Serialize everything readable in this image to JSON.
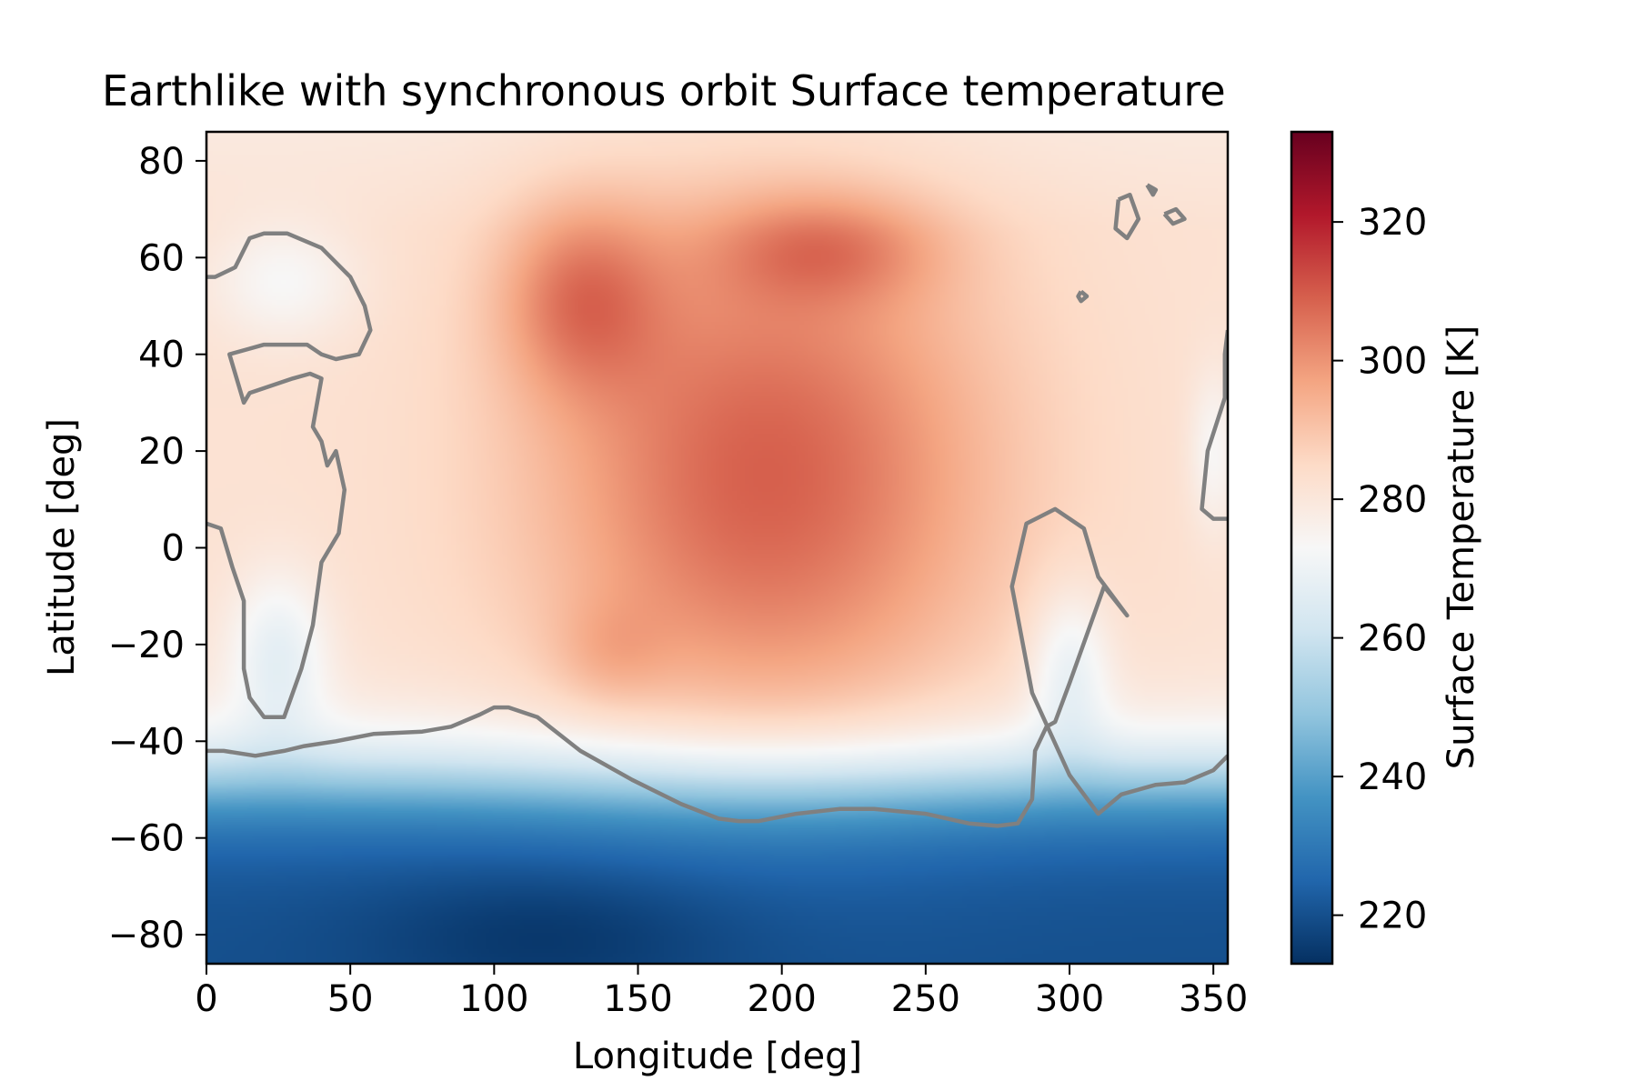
{
  "chart_data": {
    "type": "heatmap",
    "title": "Earthlike with synchronous orbit Surface temperature",
    "xlabel": "Longitude [deg]",
    "ylabel": "Latitude [deg]",
    "xlim": [
      0,
      355
    ],
    "ylim": [
      -86,
      86
    ],
    "xticks": [
      0,
      50,
      100,
      150,
      200,
      250,
      300,
      350
    ],
    "yticks": [
      80,
      60,
      40,
      20,
      0,
      -20,
      -40,
      -60,
      -80
    ],
    "colorbar": {
      "label": "Surface Temperature [K]",
      "range": [
        213,
        333
      ],
      "ticks": [
        320,
        300,
        280,
        260,
        240,
        220
      ],
      "colormap": "RdBu_r",
      "colormap_stops": [
        "#053061",
        "#2166ac",
        "#4393c3",
        "#92c5de",
        "#d1e5f0",
        "#f7f7f7",
        "#fddbc7",
        "#f4a582",
        "#d6604d",
        "#b2182b",
        "#67001f"
      ]
    },
    "grid": false,
    "temperature_features": [
      {
        "kind": "gaussian",
        "lon": 195,
        "lat": 15,
        "sigma_lon": 55,
        "sigma_lat": 38,
        "delta_K": 27
      },
      {
        "kind": "gaussian",
        "lon": 130,
        "lat": 52,
        "sigma_lon": 20,
        "sigma_lat": 14,
        "delta_K": 18
      },
      {
        "kind": "gaussian",
        "lon": 215,
        "lat": 62,
        "sigma_lon": 28,
        "sigma_lat": 8,
        "delta_K": 14
      },
      {
        "kind": "gaussian",
        "lon": 140,
        "lat": -22,
        "sigma_lon": 14,
        "sigma_lat": 8,
        "delta_K": 6
      },
      {
        "kind": "gaussian",
        "lon": 25,
        "lat": -22,
        "sigma_lon": 12,
        "sigma_lat": 12,
        "delta_K": -14
      },
      {
        "kind": "gaussian",
        "lon": 27,
        "lat": 55,
        "sigma_lon": 18,
        "sigma_lat": 9,
        "delta_K": -9
      },
      {
        "kind": "gaussian",
        "lon": 300,
        "lat": -25,
        "sigma_lon": 10,
        "sigma_lat": 12,
        "delta_K": -14
      },
      {
        "kind": "gaussian",
        "lon": 350,
        "lat": 20,
        "sigma_lon": 6,
        "sigma_lat": 12,
        "delta_K": -9
      },
      {
        "kind": "gaussian",
        "lon": 120,
        "lat": -80,
        "sigma_lon": 45,
        "sigma_lat": 10,
        "delta_K": -6
      }
    ],
    "background_K": 282,
    "pole_north_K": 279,
    "south_cold_K": 220,
    "contour_level_K": 273,
    "contours": [
      {
        "name": "south-contour",
        "points": [
          [
            0,
            -42
          ],
          [
            6,
            -42
          ],
          [
            17,
            -43
          ],
          [
            27,
            -42
          ],
          [
            34,
            -41
          ],
          [
            45,
            -40
          ],
          [
            58,
            -38.5
          ],
          [
            75,
            -38
          ],
          [
            85,
            -37
          ],
          [
            95,
            -34.5
          ],
          [
            100,
            -33
          ],
          [
            105,
            -33
          ],
          [
            115,
            -35
          ],
          [
            130,
            -42
          ],
          [
            148,
            -48
          ],
          [
            165,
            -53
          ],
          [
            178,
            -56
          ],
          [
            185,
            -56.5
          ],
          [
            192,
            -56.5
          ],
          [
            205,
            -55
          ],
          [
            220,
            -54
          ],
          [
            232,
            -54
          ],
          [
            250,
            -55
          ],
          [
            265,
            -57
          ],
          [
            275,
            -57.5
          ],
          [
            282,
            -57
          ],
          [
            287,
            -52
          ],
          [
            288,
            -42
          ],
          [
            292,
            -37
          ],
          [
            295,
            -36
          ],
          [
            300,
            -28
          ],
          [
            312,
            -8
          ],
          [
            320,
            -14
          ],
          [
            310,
            -6
          ],
          [
            305,
            4
          ],
          [
            295,
            8
          ],
          [
            285,
            5
          ],
          [
            280,
            -8
          ],
          [
            287,
            -30
          ],
          [
            300,
            -47
          ],
          [
            310,
            -55
          ],
          [
            318,
            -51
          ],
          [
            330,
            -49
          ],
          [
            340,
            -48.5
          ],
          [
            350,
            -46
          ],
          [
            355,
            -43
          ]
        ]
      },
      {
        "name": "africa-contour",
        "points": [
          [
            0,
            5
          ],
          [
            5,
            4
          ],
          [
            9,
            -4
          ],
          [
            13,
            -11
          ],
          [
            13,
            -25
          ],
          [
            15,
            -31
          ],
          [
            20,
            -35
          ],
          [
            27,
            -35
          ],
          [
            33,
            -25
          ],
          [
            37,
            -16
          ],
          [
            40,
            -3
          ],
          [
            46,
            3
          ],
          [
            48,
            12
          ],
          [
            45,
            20
          ],
          [
            42,
            17
          ],
          [
            40,
            22
          ],
          [
            37,
            25
          ],
          [
            40,
            35
          ],
          [
            36,
            36
          ],
          [
            30,
            35
          ],
          [
            15,
            32
          ],
          [
            13,
            30
          ],
          [
            8,
            40
          ],
          [
            20,
            42
          ],
          [
            35,
            42
          ],
          [
            40,
            40
          ],
          [
            45,
            39
          ],
          [
            53,
            40
          ],
          [
            57,
            45
          ],
          [
            55,
            50
          ],
          [
            50,
            56
          ],
          [
            40,
            62
          ],
          [
            28,
            65
          ],
          [
            20,
            65
          ],
          [
            15,
            64
          ],
          [
            10,
            58
          ],
          [
            3,
            56
          ],
          [
            0,
            56
          ]
        ]
      },
      {
        "name": "east-contour",
        "points": [
          [
            355,
            45
          ],
          [
            354,
            40
          ],
          [
            354,
            31
          ],
          [
            348,
            20
          ],
          [
            346,
            8
          ],
          [
            350,
            6
          ],
          [
            355,
            6
          ]
        ]
      }
    ],
    "islands": [
      {
        "name": "island-1",
        "points": [
          [
            317,
            72
          ],
          [
            321,
            73
          ],
          [
            324,
            68
          ],
          [
            320,
            64
          ],
          [
            316,
            66
          ],
          [
            317,
            72
          ]
        ]
      },
      {
        "name": "island-2",
        "points": [
          [
            327,
            75
          ],
          [
            330,
            74
          ],
          [
            329,
            73
          ],
          [
            327,
            75
          ]
        ]
      },
      {
        "name": "island-3",
        "points": [
          [
            333,
            69
          ],
          [
            337,
            70
          ],
          [
            340,
            68
          ],
          [
            336,
            67
          ],
          [
            333,
            69
          ]
        ]
      },
      {
        "name": "island-4",
        "points": [
          [
            304,
            53
          ],
          [
            306,
            52
          ],
          [
            304,
            51
          ],
          [
            303,
            52
          ],
          [
            304,
            53
          ]
        ]
      }
    ]
  }
}
